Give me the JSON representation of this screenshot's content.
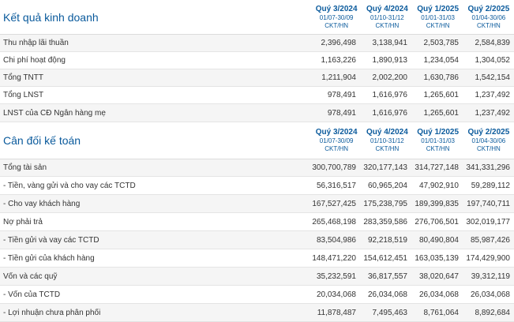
{
  "sections": [
    {
      "title": "Kết quả kinh doanh",
      "periods": [
        {
          "quarter": "Quý 3/2024",
          "range": "01/07-30/09",
          "standard": "CKT/HN"
        },
        {
          "quarter": "Quý 4/2024",
          "range": "01/10-31/12",
          "standard": "CKT/HN"
        },
        {
          "quarter": "Quý 1/2025",
          "range": "01/01-31/03",
          "standard": "CKT/HN"
        },
        {
          "quarter": "Quý 2/2025",
          "range": "01/04-30/06",
          "standard": "CKT/HN"
        }
      ],
      "rows": [
        {
          "label": "Thu nhập lãi thuần",
          "values": [
            "2,396,498",
            "3,138,941",
            "2,503,785",
            "2,584,839"
          ]
        },
        {
          "label": "Chi phí hoạt động",
          "values": [
            "1,163,226",
            "1,890,913",
            "1,234,054",
            "1,304,052"
          ]
        },
        {
          "label": "Tổng TNTT",
          "values": [
            "1,211,904",
            "2,002,200",
            "1,630,786",
            "1,542,154"
          ]
        },
        {
          "label": "Tổng LNST",
          "values": [
            "978,491",
            "1,616,976",
            "1,265,601",
            "1,237,492"
          ]
        },
        {
          "label": "LNST của CĐ Ngân hàng mẹ",
          "values": [
            "978,491",
            "1,616,976",
            "1,265,601",
            "1,237,492"
          ]
        }
      ]
    },
    {
      "title": "Cân đối kế toán",
      "periods": [
        {
          "quarter": "Quý 3/2024",
          "range": "01/07-30/09",
          "standard": "CKT/HN"
        },
        {
          "quarter": "Quý 4/2024",
          "range": "01/10-31/12",
          "standard": "CKT/HN"
        },
        {
          "quarter": "Quý 1/2025",
          "range": "01/01-31/03",
          "standard": "CKT/HN"
        },
        {
          "quarter": "Quý 2/2025",
          "range": "01/04-30/06",
          "standard": "CKT/HN"
        }
      ],
      "rows": [
        {
          "label": "Tổng tài sản",
          "values": [
            "300,700,789",
            "320,177,143",
            "314,727,148",
            "341,331,296"
          ]
        },
        {
          "label": "- Tiền, vàng gửi và cho vay các TCTD",
          "values": [
            "56,316,517",
            "60,965,204",
            "47,902,910",
            "59,289,112"
          ]
        },
        {
          "label": "- Cho vay khách hàng",
          "values": [
            "167,527,425",
            "175,238,795",
            "189,399,835",
            "197,740,711"
          ]
        },
        {
          "label": "Nợ phải trả",
          "values": [
            "265,468,198",
            "283,359,586",
            "276,706,501",
            "302,019,177"
          ]
        },
        {
          "label": "- Tiền gửi và vay các TCTD",
          "values": [
            "83,504,986",
            "92,218,519",
            "80,490,804",
            "85,987,426"
          ]
        },
        {
          "label": "- Tiền gửi của khách hàng",
          "values": [
            "148,471,220",
            "154,612,451",
            "163,035,139",
            "174,429,900"
          ]
        },
        {
          "label": "Vốn và các quỹ",
          "values": [
            "35,232,591",
            "36,817,557",
            "38,020,647",
            "39,312,119"
          ]
        },
        {
          "label": "- Vốn của TCTD",
          "values": [
            "20,034,068",
            "26,034,068",
            "26,034,068",
            "26,034,068"
          ]
        },
        {
          "label": "- Lợi nhuận chưa phân phối",
          "values": [
            "11,878,487",
            "7,495,463",
            "8,761,064",
            "8,892,684"
          ]
        }
      ]
    }
  ]
}
